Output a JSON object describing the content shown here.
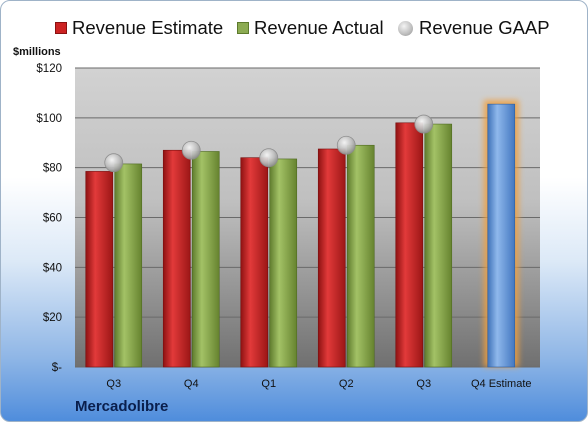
{
  "chart_data": {
    "type": "bar",
    "ylabel": "$millions",
    "ylim": [
      0,
      120
    ],
    "yticks": [
      "$-",
      "$20",
      "$40",
      "$60",
      "$80",
      "$100",
      "$120"
    ],
    "categories": [
      "Q3",
      "Q4",
      "Q1",
      "Q2",
      "Q3",
      "Q4 Estimate"
    ],
    "series": [
      {
        "name": "Revenue Estimate",
        "type": "bar",
        "color": "#cc2222",
        "values": [
          78.5,
          87,
          84,
          87.5,
          98,
          null
        ]
      },
      {
        "name": "Revenue Actual",
        "type": "bar",
        "color": "#8cab52",
        "values": [
          81.5,
          86.5,
          83.5,
          89,
          97.5,
          null
        ]
      },
      {
        "name": "Revenue GAAP",
        "type": "marker",
        "color": "#b8b8b8",
        "values": [
          82,
          87,
          84,
          89,
          97.5,
          null
        ]
      },
      {
        "name": "Q4 Estimate",
        "type": "bar",
        "color": "#6f9fd8",
        "highlight": "#f0a040",
        "values": [
          null,
          null,
          null,
          null,
          null,
          105.5
        ]
      }
    ],
    "legend": "top",
    "grid": true
  },
  "footer": {
    "title": "Mercadolibre"
  }
}
